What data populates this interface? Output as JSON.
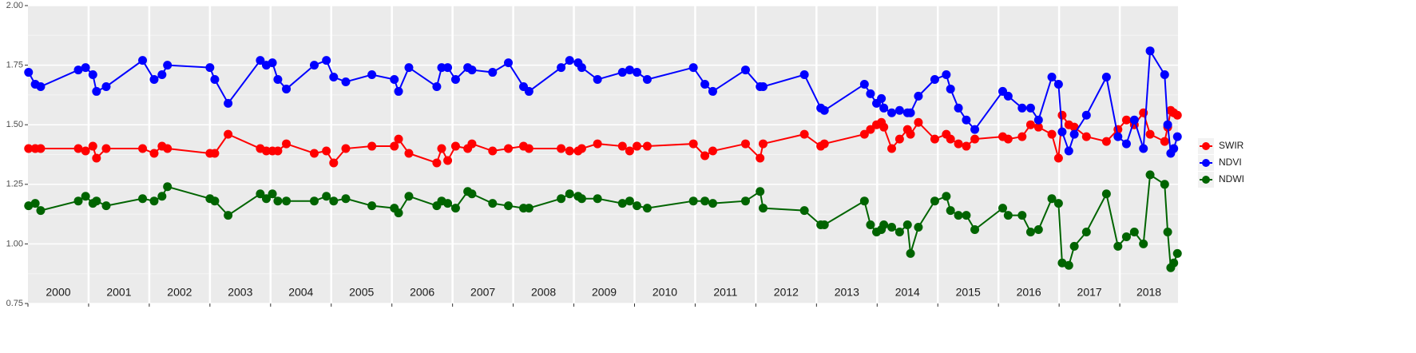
{
  "chart_data": {
    "type": "line",
    "x": [
      2000.01,
      2000.12,
      2000.21,
      2000.83,
      2000.95,
      2001.07,
      2001.13,
      2001.29,
      2001.89,
      2002.08,
      2002.21,
      2002.3,
      2003.0,
      2003.08,
      2003.3,
      2003.83,
      2003.93,
      2004.03,
      2004.12,
      2004.26,
      2004.72,
      2004.92,
      2005.04,
      2005.24,
      2005.67,
      2006.04,
      2006.11,
      2006.28,
      2006.74,
      2006.82,
      2006.92,
      2007.05,
      2007.25,
      2007.32,
      2007.66,
      2007.92,
      2008.17,
      2008.26,
      2008.79,
      2008.93,
      2009.07,
      2009.13,
      2009.39,
      2009.8,
      2009.92,
      2010.04,
      2010.21,
      2010.97,
      2011.16,
      2011.29,
      2011.83,
      2012.07,
      2012.12,
      2012.8,
      2013.07,
      2013.13,
      2013.79,
      2013.89,
      2013.99,
      2014.07,
      2014.11,
      2014.24,
      2014.37,
      2014.5,
      2014.55,
      2014.68,
      2014.95,
      2015.14,
      2015.21,
      2015.34,
      2015.47,
      2015.61,
      2016.07,
      2016.16,
      2016.39,
      2016.53,
      2016.66,
      2016.88,
      2016.99,
      2017.05,
      2017.16,
      2017.25,
      2017.45,
      2017.78,
      2017.97,
      2018.11,
      2018.24,
      2018.39,
      2018.5,
      2018.74,
      2018.79,
      2018.84,
      2018.89,
      2018.95
    ],
    "series": [
      {
        "name": "SWIR",
        "color": "#ff0000",
        "values": [
          1.4,
          1.4,
          1.4,
          1.4,
          1.39,
          1.41,
          1.36,
          1.4,
          1.4,
          1.38,
          1.41,
          1.4,
          1.38,
          1.38,
          1.46,
          1.4,
          1.39,
          1.39,
          1.39,
          1.42,
          1.38,
          1.39,
          1.34,
          1.4,
          1.41,
          1.41,
          1.44,
          1.38,
          1.34,
          1.4,
          1.35,
          1.41,
          1.4,
          1.42,
          1.39,
          1.4,
          1.41,
          1.4,
          1.4,
          1.39,
          1.39,
          1.4,
          1.42,
          1.41,
          1.39,
          1.41,
          1.41,
          1.42,
          1.37,
          1.39,
          1.42,
          1.36,
          1.42,
          1.46,
          1.41,
          1.42,
          1.46,
          1.48,
          1.5,
          1.51,
          1.49,
          1.4,
          1.44,
          1.48,
          1.46,
          1.51,
          1.44,
          1.46,
          1.44,
          1.42,
          1.41,
          1.44,
          1.45,
          1.44,
          1.45,
          1.5,
          1.49,
          1.46,
          1.36,
          1.54,
          1.5,
          1.49,
          1.45,
          1.43,
          1.48,
          1.52,
          1.5,
          1.55,
          1.46,
          1.43,
          1.49,
          1.56,
          1.55,
          1.54
        ]
      },
      {
        "name": "NDVI",
        "color": "#0000ff",
        "values": [
          1.72,
          1.67,
          1.66,
          1.73,
          1.74,
          1.71,
          1.64,
          1.66,
          1.77,
          1.69,
          1.71,
          1.75,
          1.74,
          1.69,
          1.59,
          1.77,
          1.75,
          1.76,
          1.69,
          1.65,
          1.75,
          1.77,
          1.7,
          1.68,
          1.71,
          1.69,
          1.64,
          1.74,
          1.66,
          1.74,
          1.74,
          1.69,
          1.74,
          1.73,
          1.72,
          1.76,
          1.66,
          1.64,
          1.74,
          1.77,
          1.76,
          1.74,
          1.69,
          1.72,
          1.73,
          1.72,
          1.69,
          1.74,
          1.67,
          1.64,
          1.73,
          1.66,
          1.66,
          1.71,
          1.57,
          1.56,
          1.67,
          1.63,
          1.59,
          1.61,
          1.57,
          1.55,
          1.56,
          1.55,
          1.55,
          1.62,
          1.69,
          1.71,
          1.65,
          1.57,
          1.52,
          1.48,
          1.64,
          1.62,
          1.57,
          1.57,
          1.52,
          1.7,
          1.67,
          1.47,
          1.39,
          1.46,
          1.54,
          1.7,
          1.45,
          1.42,
          1.52,
          1.4,
          1.81,
          1.71,
          1.5,
          1.38,
          1.4,
          1.45
        ]
      },
      {
        "name": "NDWI",
        "color": "#006400",
        "values": [
          1.16,
          1.17,
          1.14,
          1.18,
          1.2,
          1.17,
          1.18,
          1.16,
          1.19,
          1.18,
          1.2,
          1.24,
          1.19,
          1.18,
          1.12,
          1.21,
          1.19,
          1.21,
          1.18,
          1.18,
          1.18,
          1.2,
          1.18,
          1.19,
          1.16,
          1.15,
          1.13,
          1.2,
          1.16,
          1.18,
          1.17,
          1.15,
          1.22,
          1.21,
          1.17,
          1.16,
          1.15,
          1.15,
          1.19,
          1.21,
          1.2,
          1.19,
          1.19,
          1.17,
          1.18,
          1.16,
          1.15,
          1.18,
          1.18,
          1.17,
          1.18,
          1.22,
          1.15,
          1.14,
          1.08,
          1.08,
          1.18,
          1.08,
          1.05,
          1.06,
          1.08,
          1.07,
          1.05,
          1.08,
          0.96,
          1.07,
          1.18,
          1.2,
          1.14,
          1.12,
          1.12,
          1.06,
          1.15,
          1.12,
          1.12,
          1.05,
          1.06,
          1.19,
          1.17,
          0.92,
          0.91,
          0.99,
          1.05,
          1.21,
          0.99,
          1.03,
          1.05,
          1.0,
          1.29,
          1.25,
          1.05,
          0.9,
          0.92,
          0.96
        ]
      }
    ],
    "xlim": [
      2000,
      2018.96
    ],
    "xticks": [
      {
        "value": 2000,
        "label": "2000"
      },
      {
        "value": 2001,
        "label": "2001"
      },
      {
        "value": 2002,
        "label": "2002"
      },
      {
        "value": 2003,
        "label": "2003"
      },
      {
        "value": 2004,
        "label": "2004"
      },
      {
        "value": 2005,
        "label": "2005"
      },
      {
        "value": 2006,
        "label": "2006"
      },
      {
        "value": 2007,
        "label": "2007"
      },
      {
        "value": 2008,
        "label": "2008"
      },
      {
        "value": 2009,
        "label": "2009"
      },
      {
        "value": 2010,
        "label": "2010"
      },
      {
        "value": 2011,
        "label": "2011"
      },
      {
        "value": 2012,
        "label": "2012"
      },
      {
        "value": 2013,
        "label": "2013"
      },
      {
        "value": 2014,
        "label": "2014"
      },
      {
        "value": 2015,
        "label": "2015"
      },
      {
        "value": 2016,
        "label": "2016"
      },
      {
        "value": 2017,
        "label": "2017"
      },
      {
        "value": 2018,
        "label": "2018"
      }
    ],
    "ylim": [
      0.75,
      2.0
    ],
    "yticks": [
      0.75,
      {
        "value": 1.0,
        "label": "1.00"
      },
      1.25,
      {
        "value": 1.5,
        "label": "1.50"
      },
      1.75,
      {
        "value": 2.0,
        "label": "2.00"
      }
    ],
    "grid": true,
    "legend_position": "right"
  }
}
